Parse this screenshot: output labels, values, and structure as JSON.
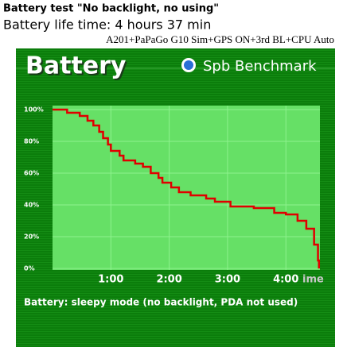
{
  "chart_data": {
    "type": "line",
    "heading": "Battery test \"No backlight, no using\"",
    "subtitle": "Battery life time: 4 hours 37 min",
    "note": "A201+PaPaGo G10 Sim+GPS ON+3rd BL+CPU Auto",
    "title": "Battery",
    "brand": "Spb Benchmark",
    "caption": "Battery: sleepy mode (no backlight, PDA not used)",
    "xlabel": "ime",
    "step": true,
    "grid": true,
    "xlim": [
      0,
      275
    ],
    "ylim": [
      -1,
      102.5
    ],
    "xticks": [
      {
        "value": 60,
        "label": "1:00"
      },
      {
        "value": 120,
        "label": "2:00"
      },
      {
        "value": 180,
        "label": "3:00"
      },
      {
        "value": 240,
        "label": "4:00"
      }
    ],
    "yticks": [
      {
        "value": 0,
        "label": "0%"
      },
      {
        "value": 20,
        "label": "20%"
      },
      {
        "value": 40,
        "label": "40%"
      },
      {
        "value": 60,
        "label": "60%"
      },
      {
        "value": 80,
        "label": "80%"
      },
      {
        "value": 100,
        "label": "100%"
      }
    ],
    "x": [
      0,
      15,
      28,
      36,
      42,
      48,
      52,
      57,
      60,
      69,
      73,
      85,
      93,
      101,
      109,
      113,
      122,
      130,
      142,
      158,
      167,
      183,
      207,
      228,
      240,
      252,
      261,
      269,
      273,
      274
    ],
    "series": [
      {
        "name": "Battery",
        "color": "#e00000",
        "values": [
          100,
          98,
          96,
          93,
          90,
          86,
          82,
          78,
          74,
          71,
          68,
          66,
          64,
          60,
          57,
          54,
          51,
          48,
          46,
          44,
          42,
          39,
          38,
          35,
          34,
          30,
          25,
          15,
          5,
          0
        ]
      }
    ]
  }
}
